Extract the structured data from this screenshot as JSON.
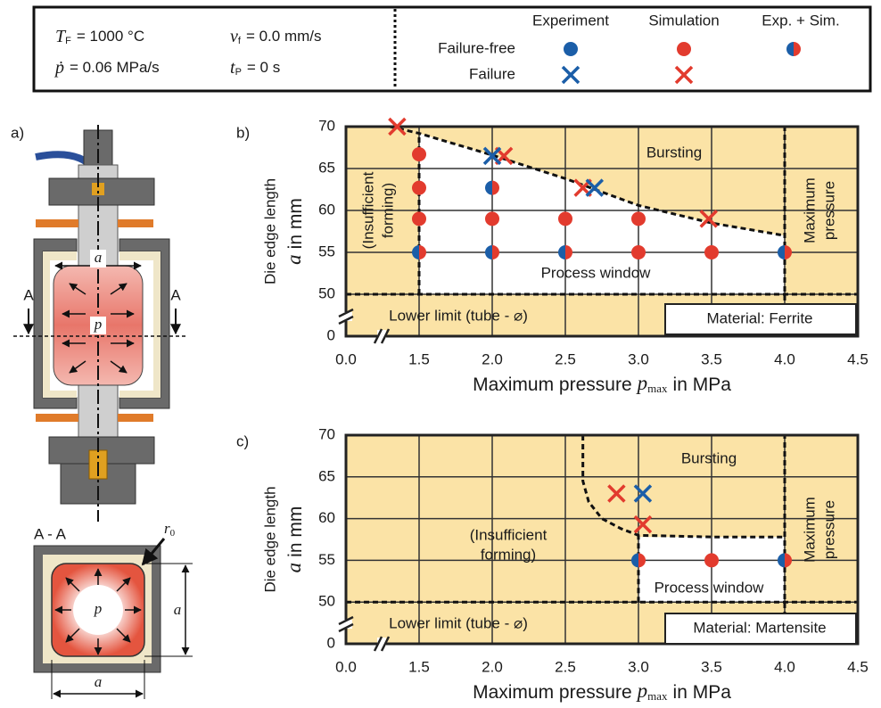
{
  "header": {
    "params": [
      {
        "symbol": "T",
        "sub": "F",
        "value": "= 1000 °C"
      },
      {
        "symbol": "ṗ",
        "value": "= 0.06 MPa/s"
      },
      {
        "symbol": "v",
        "sub": "f",
        "value": "= 0.0 mm/s"
      },
      {
        "symbol": "t",
        "sub": "P",
        "value": "= 0 s"
      }
    ]
  },
  "legend": {
    "columns": [
      "Experiment",
      "Simulation",
      "Exp. + Sim."
    ],
    "rows": [
      "Failure-free",
      "Failure"
    ],
    "colors": {
      "experiment": "#1b5ea8",
      "simulation": "#e23b2e"
    }
  },
  "schematic": {
    "label": "a)",
    "section_marks": [
      "A",
      "A"
    ],
    "dimension": "a",
    "pressure": "p",
    "section_title": "A - A",
    "radius": {
      "symbol": "r",
      "sub": "0"
    },
    "section_pressure": "p",
    "section_dimensions": [
      "a",
      "a"
    ]
  },
  "chart_data": [
    {
      "type": "scatter",
      "panel": "b)",
      "x_label": {
        "text": "Maximum pressure",
        "symbol": "p",
        "sub": "max",
        "unit": "in MPa"
      },
      "y_label": {
        "text": "Die edge length",
        "symbol": "a",
        "unit": "in mm"
      },
      "xlim": [
        0,
        4.5
      ],
      "ylim": [
        0,
        70
      ],
      "x_axis_break": true,
      "y_axis_break": true,
      "xticks": [
        {
          "value": 0,
          "label": "0.0"
        },
        1.5,
        {
          "value": 2,
          "label": "2.0"
        },
        2.5,
        {
          "value": 3,
          "label": "3.0"
        },
        3.5,
        {
          "value": 4,
          "label": "4.0"
        },
        4.5
      ],
      "yticks": [
        0,
        50,
        55,
        60,
        65,
        70
      ],
      "grid": true,
      "plot_color": "#fbe3a6",
      "window_color": "#ffffff",
      "process_window": {
        "x": [
          1.5,
          1.5,
          2.0,
          2.5,
          3.0,
          3.5,
          4.0,
          4.0
        ],
        "y": [
          50,
          69.2,
          66.6,
          63.8,
          60.6,
          58.5,
          57.0,
          50
        ]
      },
      "boundaries": [
        {
          "x": [
            1.3,
            1.5,
            2.0,
            2.5,
            3.0,
            3.5,
            4.0
          ],
          "y": [
            70,
            69.2,
            66.6,
            63.8,
            60.6,
            58.5,
            57.0
          ]
        },
        {
          "x": [
            1.5,
            1.5
          ],
          "y": [
            50,
            69.2
          ]
        },
        {
          "x": [
            0,
            4.5
          ],
          "y": [
            50,
            50
          ]
        },
        {
          "x": [
            4,
            4
          ],
          "y": [
            0,
            70
          ]
        }
      ],
      "annotations": [
        "Bursting",
        [
          "(Insufficient",
          "forming)"
        ],
        "Process window",
        "Lower limit (tube - ⌀)",
        [
          "Maximum",
          "pressure"
        ],
        "Material: Ferrite"
      ],
      "series": [
        {
          "marker": "circle",
          "colors": [
            "#1b5ea8",
            "#e23b2e"
          ],
          "x": [
            1.5,
            2.0,
            2.5,
            4.0,
            2.0
          ],
          "values": [
            55,
            55,
            55,
            55,
            62.7
          ]
        },
        {
          "marker": "circle",
          "color": "#e23b2e",
          "x": [
            1.5,
            1.5,
            1.5,
            2.0,
            2.5,
            3.0,
            3.0,
            3.5
          ],
          "values": [
            66.7,
            62.7,
            59,
            59,
            59,
            59,
            55,
            55
          ]
        },
        {
          "marker": "cross",
          "color": "#e23b2e",
          "x": [
            1.35,
            2.08,
            2.62,
            3.48
          ],
          "values": [
            70,
            66.5,
            62.7,
            59
          ]
        },
        {
          "marker": "cross",
          "color": "#1b5ea8",
          "x": [
            2.0,
            2.7
          ],
          "values": [
            66.5,
            62.7
          ]
        }
      ]
    },
    {
      "type": "scatter",
      "panel": "c)",
      "x_label": {
        "text": "Maximum pressure",
        "symbol": "p",
        "sub": "max",
        "unit": "in MPa"
      },
      "y_label": {
        "text": "Die edge length",
        "symbol": "a",
        "unit": "in mm"
      },
      "xlim": [
        0,
        4.5
      ],
      "ylim": [
        0,
        70
      ],
      "x_axis_break": true,
      "y_axis_break": true,
      "xticks": [
        {
          "value": 0,
          "label": "0.0"
        },
        1.5,
        {
          "value": 2,
          "label": "2.0"
        },
        2.5,
        {
          "value": 3,
          "label": "3.0"
        },
        3.5,
        {
          "value": 4,
          "label": "4.0"
        },
        4.5
      ],
      "yticks": [
        0,
        50,
        55,
        60,
        65,
        70
      ],
      "grid": true,
      "plot_color": "#fbe3a6",
      "window_color": "#ffffff",
      "process_window": {
        "x": [
          3.0,
          3.0,
          4.0,
          4.0
        ],
        "y": [
          50,
          57.8,
          57.8,
          50
        ]
      },
      "boundaries": [
        {
          "x": [
            2.62,
            2.62,
            2.66,
            2.75,
            2.88,
            3.0,
            3.5,
            4.0
          ],
          "y": [
            70,
            64.5,
            62,
            60,
            58.8,
            58,
            57.8,
            57.8
          ]
        },
        {
          "x": [
            3.0,
            3.0
          ],
          "y": [
            50,
            58
          ]
        },
        {
          "x": [
            0,
            4.5
          ],
          "y": [
            50,
            50
          ]
        },
        {
          "x": [
            4,
            4
          ],
          "y": [
            0,
            70
          ]
        }
      ],
      "annotations": [
        "Bursting",
        [
          "(Insufficient",
          "forming)"
        ],
        "Process window",
        "Lower limit (tube - ⌀)",
        [
          "Maximum",
          "pressure"
        ],
        "Material: Martensite"
      ],
      "series": [
        {
          "marker": "circle",
          "colors": [
            "#1b5ea8",
            "#e23b2e"
          ],
          "x": [
            3.0,
            4.0
          ],
          "values": [
            55,
            55
          ]
        },
        {
          "marker": "circle",
          "color": "#e23b2e",
          "x": [
            3.5
          ],
          "values": [
            55
          ]
        },
        {
          "marker": "cross",
          "color": "#e23b2e",
          "x": [
            2.85,
            3.03
          ],
          "values": [
            63,
            59.3
          ]
        },
        {
          "marker": "cross",
          "color": "#1b5ea8",
          "x": [
            3.03
          ],
          "values": [
            63
          ]
        }
      ]
    }
  ]
}
